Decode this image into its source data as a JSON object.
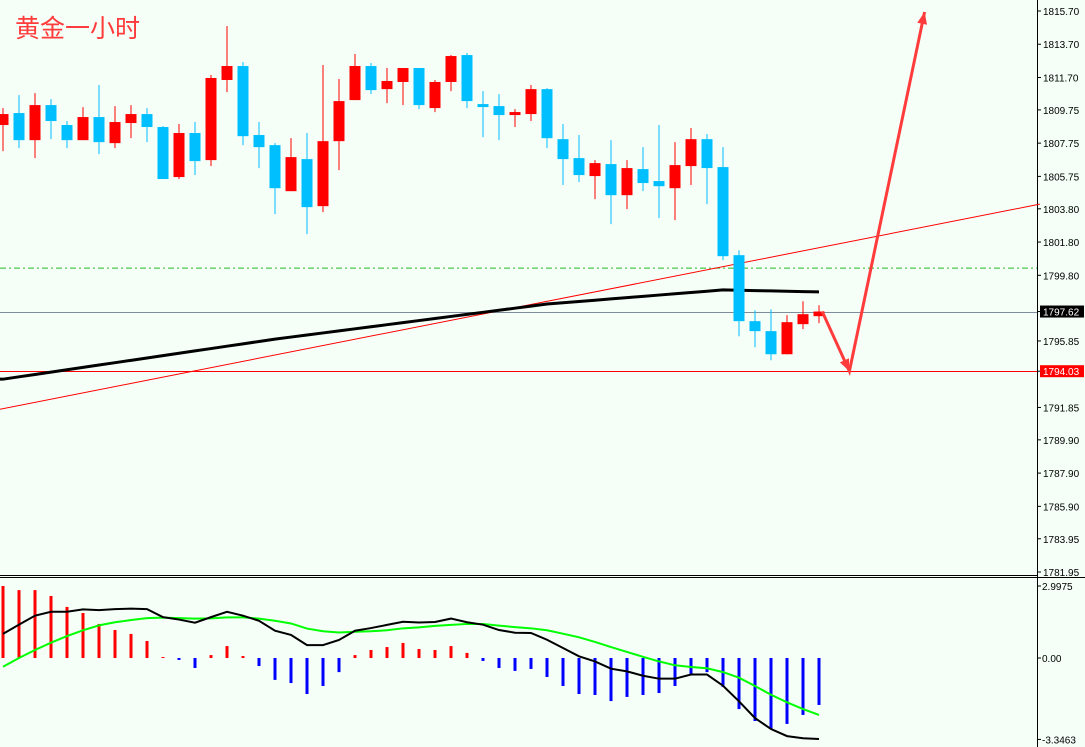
{
  "title": "黄金一小时",
  "colors": {
    "background": "#F5FFF8",
    "bull": "#FF0000",
    "bear": "#00BFFF",
    "hist_pos": "#FF0000",
    "hist_neg": "#0000FF",
    "ma": "#000000",
    "signal": "#00FF00",
    "trendline": "#FF0000",
    "arrow": "#FF3B3B",
    "level_green": "#22BB22",
    "level_gray": "#7F8C99",
    "level_red": "#FF0000"
  },
  "chart_data": [
    {
      "type": "candlestick",
      "title": "黄金一小时",
      "ylim": [
        1781.95,
        1815.7
      ],
      "yticks": [
        "1815.70",
        "1813.70",
        "1811.70",
        "1809.75",
        "1807.75",
        "1805.75",
        "1803.80",
        "1801.80",
        "1799.80",
        "1797.62",
        "1795.85",
        "1794.03",
        "1791.85",
        "1789.90",
        "1787.90",
        "1785.90",
        "1783.95",
        "1781.95"
      ],
      "candles": [
        [
          1808.84,
          1809.86,
          1807.27,
          1809.5
        ],
        [
          1809.56,
          1810.64,
          1807.45,
          1807.93
        ],
        [
          1807.93,
          1810.76,
          1806.85,
          1810.04
        ],
        [
          1810.04,
          1810.4,
          1807.99,
          1809.08
        ],
        [
          1808.84,
          1809.08,
          1807.45,
          1807.93
        ],
        [
          1807.93,
          1809.92,
          1807.93,
          1809.32
        ],
        [
          1809.32,
          1811.25,
          1807.09,
          1807.81
        ],
        [
          1807.75,
          1809.98,
          1807.45,
          1809.02
        ],
        [
          1808.96,
          1810.04,
          1808.05,
          1809.5
        ],
        [
          1809.5,
          1809.86,
          1807.81,
          1808.72
        ],
        [
          1808.72,
          1808.78,
          1805.59,
          1805.59
        ],
        [
          1805.71,
          1808.9,
          1805.59,
          1808.36
        ],
        [
          1808.36,
          1809.02,
          1805.83,
          1806.67
        ],
        [
          1806.73,
          1811.85,
          1806.37,
          1811.67
        ],
        [
          1811.55,
          1814.8,
          1810.82,
          1812.39
        ],
        [
          1812.39,
          1812.63,
          1807.63,
          1808.17
        ],
        [
          1808.24,
          1809.02,
          1806.25,
          1807.51
        ],
        [
          1807.63,
          1807.75,
          1803.48,
          1805.04
        ],
        [
          1804.86,
          1808.05,
          1804.86,
          1806.91
        ],
        [
          1806.79,
          1808.36,
          1802.28,
          1803.9
        ],
        [
          1803.96,
          1812.45,
          1803.6,
          1807.87
        ],
        [
          1807.87,
          1811.61,
          1806.13,
          1810.28
        ],
        [
          1810.34,
          1813.11,
          1810.34,
          1812.39
        ],
        [
          1812.39,
          1812.57,
          1810.7,
          1810.94
        ],
        [
          1811.0,
          1812.27,
          1810.16,
          1811.49
        ],
        [
          1811.43,
          1812.27,
          1810.04,
          1812.27
        ],
        [
          1812.27,
          1812.27,
          1809.8,
          1810.04
        ],
        [
          1809.86,
          1811.55,
          1809.62,
          1811.43
        ],
        [
          1811.43,
          1813.05,
          1810.88,
          1812.99
        ],
        [
          1813.05,
          1813.17,
          1809.86,
          1810.28
        ],
        [
          1810.1,
          1810.88,
          1808.11,
          1809.92
        ],
        [
          1809.98,
          1810.7,
          1807.93,
          1809.44
        ],
        [
          1809.44,
          1809.8,
          1808.72,
          1809.62
        ],
        [
          1809.5,
          1811.25,
          1809.08,
          1811.0
        ],
        [
          1811.0,
          1811.06,
          1807.45,
          1808.05
        ],
        [
          1807.99,
          1808.9,
          1805.23,
          1806.79
        ],
        [
          1806.85,
          1808.24,
          1805.41,
          1805.83
        ],
        [
          1805.77,
          1806.73,
          1804.38,
          1806.55
        ],
        [
          1806.49,
          1807.93,
          1802.88,
          1804.62
        ],
        [
          1804.62,
          1806.73,
          1803.78,
          1806.25
        ],
        [
          1806.19,
          1807.51,
          1804.86,
          1805.35
        ],
        [
          1805.47,
          1808.84,
          1803.24,
          1805.16
        ],
        [
          1805.04,
          1807.81,
          1803.12,
          1806.43
        ],
        [
          1806.37,
          1808.66,
          1805.23,
          1807.99
        ],
        [
          1807.99,
          1808.3,
          1804.08,
          1806.25
        ],
        [
          1806.31,
          1807.51,
          1800.71,
          1800.95
        ],
        [
          1801.01,
          1801.31,
          1796.13,
          1797.04
        ],
        [
          1797.04,
          1797.7,
          1795.47,
          1796.44
        ],
        [
          1796.44,
          1797.76,
          1794.69,
          1795.05
        ],
        [
          1795.05,
          1797.4,
          1795.05,
          1796.98
        ],
        [
          1796.86,
          1798.24,
          1796.56,
          1797.46
        ],
        [
          1797.34,
          1798.0,
          1796.92,
          1797.62
        ]
      ],
      "candle_format": [
        "open",
        "high",
        "low",
        "close"
      ],
      "moving_average": [
        [
          0,
          1793.55
        ],
        [
          17,
          1795.96
        ],
        [
          34,
          1798.07
        ],
        [
          45,
          1798.92
        ],
        [
          51,
          1798.8
        ]
      ],
      "trendline": [
        [
          -0.19,
          1791.74
        ],
        [
          64.8,
          1804.08
        ]
      ],
      "levels": {
        "green_dashed": 1800.23,
        "current_price": "1797.62",
        "target_price": "1794.03"
      },
      "arrow": [
        [
          51.2,
          1797.62
        ],
        [
          52.9,
          1794.03
        ],
        [
          57.6,
          1815.64
        ]
      ]
    },
    {
      "type": "macd",
      "ylim": [
        -3.3463,
        2.9975
      ],
      "yticks": [
        "2.9975",
        "0.00",
        "-3.3463"
      ],
      "histogram": [
        2.96,
        2.79,
        2.79,
        2.55,
        2.1,
        1.85,
        1.4,
        1.15,
        0.99,
        0.7,
        0.04,
        -0.08,
        -0.41,
        0.12,
        0.49,
        0.08,
        -0.33,
        -0.9,
        -1.03,
        -1.48,
        -1.15,
        -0.58,
        0.12,
        0.33,
        0.45,
        0.62,
        0.37,
        0.33,
        0.49,
        0.21,
        -0.12,
        -0.41,
        -0.53,
        -0.45,
        -0.78,
        -1.15,
        -1.48,
        -1.52,
        -1.77,
        -1.6,
        -1.52,
        -1.44,
        -1.15,
        -0.66,
        -0.58,
        -1.19,
        -2.1,
        -2.59,
        -2.92,
        -2.71,
        -2.34,
        -1.93
      ],
      "main_line": [
        0.99,
        1.37,
        1.74,
        1.9,
        1.9,
        2.0,
        1.97,
        2.01,
        2.03,
        2.01,
        1.68,
        1.58,
        1.45,
        1.68,
        1.9,
        1.74,
        1.53,
        1.12,
        0.95,
        0.53,
        0.53,
        0.74,
        1.12,
        1.23,
        1.36,
        1.49,
        1.46,
        1.48,
        1.62,
        1.47,
        1.37,
        1.15,
        1.04,
        1.03,
        0.75,
        0.41,
        0.07,
        -0.14,
        -0.44,
        -0.55,
        -0.73,
        -0.85,
        -0.85,
        -0.68,
        -0.68,
        -1.14,
        -1.78,
        -2.47,
        -2.92,
        -3.21,
        -3.3,
        -3.33
      ],
      "signal_line": [
        -0.36,
        0.0,
        0.33,
        0.63,
        0.9,
        1.14,
        1.34,
        1.47,
        1.56,
        1.64,
        1.66,
        1.64,
        1.62,
        1.63,
        1.67,
        1.67,
        1.62,
        1.53,
        1.42,
        1.21,
        1.1,
        1.05,
        1.08,
        1.1,
        1.14,
        1.22,
        1.26,
        1.32,
        1.36,
        1.4,
        1.4,
        1.33,
        1.27,
        1.22,
        1.14,
        1.0,
        0.85,
        0.66,
        0.45,
        0.25,
        0.05,
        -0.14,
        -0.3,
        -0.37,
        -0.42,
        -0.58,
        -0.81,
        -1.15,
        -1.51,
        -1.82,
        -2.1,
        -2.34
      ]
    }
  ]
}
